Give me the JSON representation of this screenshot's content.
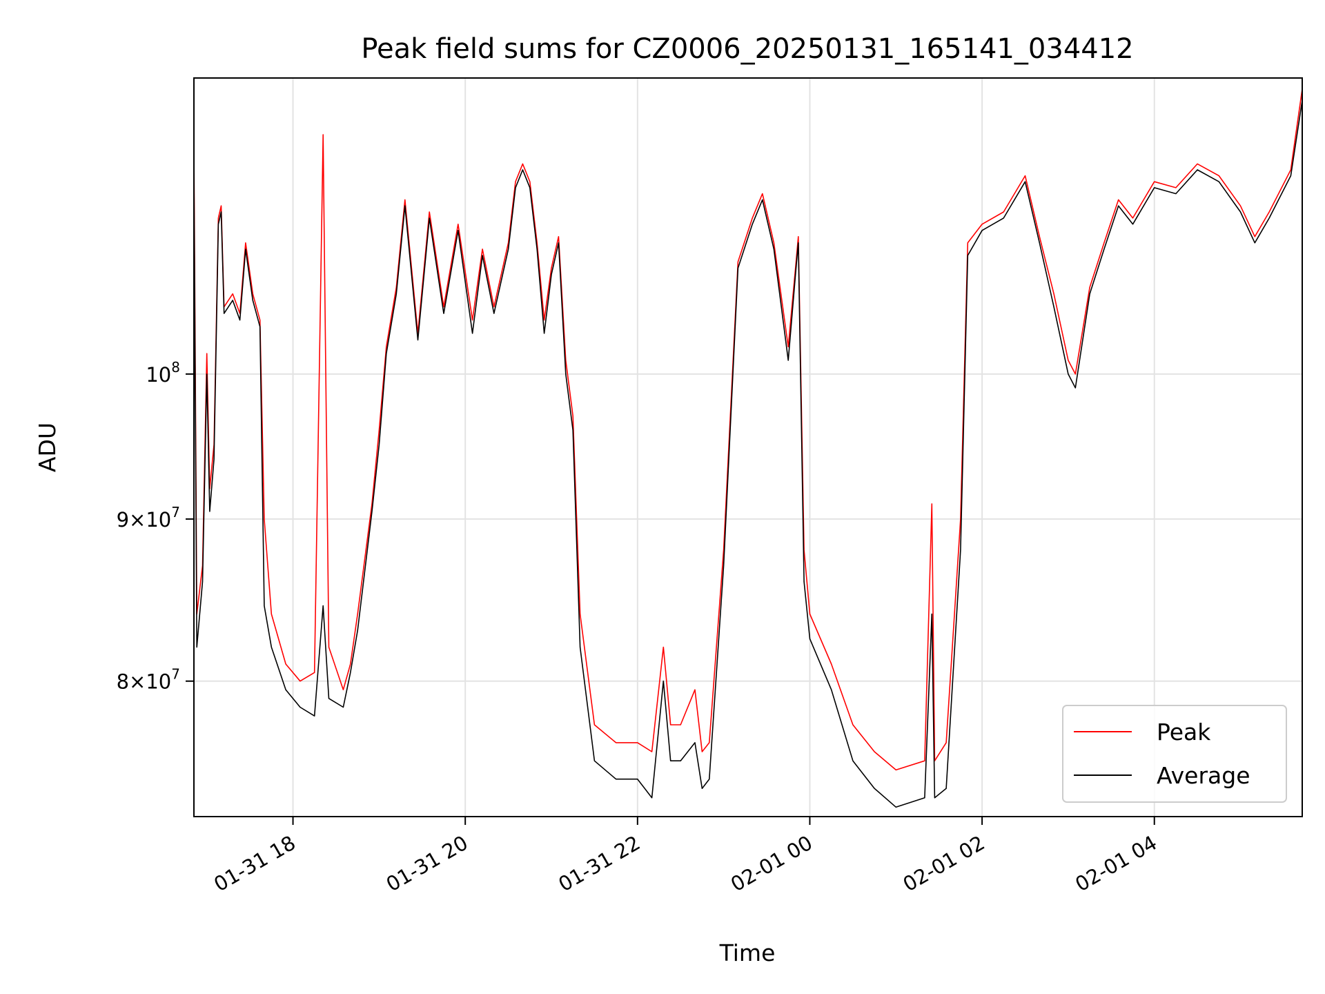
{
  "chart_data": {
    "type": "line",
    "title": "Peak field sums for CZ0006_20250131_165141_034412",
    "xlabel": "Time",
    "ylabel": "ADU",
    "x_range": [
      "2025-01-31 16:51",
      "2025-02-01 05:43"
    ],
    "y_scale": "log",
    "ylim": [
      72500000,
      124000000
    ],
    "grid": true,
    "legend_position": "lower-right",
    "x_ticks": [
      {
        "value": "2025-01-31 18:00",
        "label": "01-31 18"
      },
      {
        "value": "2025-01-31 20:00",
        "label": "01-31 20"
      },
      {
        "value": "2025-01-31 22:00",
        "label": "01-31 22"
      },
      {
        "value": "2025-02-01 00:00",
        "label": "02-01 00"
      },
      {
        "value": "2025-02-01 02:00",
        "label": "02-01 02"
      },
      {
        "value": "2025-02-01 04:00",
        "label": "02-01 04"
      }
    ],
    "y_ticks": [
      {
        "value": 80000000,
        "base": "8×10",
        "exp": "7"
      },
      {
        "value": 90000000,
        "base": "9×10",
        "exp": "7"
      },
      {
        "value": 100000000,
        "base": "10",
        "exp": "8"
      }
    ],
    "series": [
      {
        "name": "Peak",
        "color": "#ff0000",
        "points": [
          [
            "2025-01-31 16:51",
            118000000
          ],
          [
            "2025-01-31 16:53",
            84000000
          ],
          [
            "2025-01-31 16:57",
            87000000
          ],
          [
            "2025-01-31 17:00",
            101500000
          ],
          [
            "2025-01-31 17:02",
            92000000
          ],
          [
            "2025-01-31 17:05",
            95000000
          ],
          [
            "2025-01-31 17:08",
            112000000
          ],
          [
            "2025-01-31 17:10",
            113000000
          ],
          [
            "2025-01-31 17:12",
            105000000
          ],
          [
            "2025-01-31 17:18",
            106000000
          ],
          [
            "2025-01-31 17:23",
            104500000
          ],
          [
            "2025-01-31 17:27",
            110000000
          ],
          [
            "2025-01-31 17:32",
            106000000
          ],
          [
            "2025-01-31 17:37",
            104000000
          ],
          [
            "2025-01-31 17:40",
            90000000
          ],
          [
            "2025-01-31 17:45",
            84000000
          ],
          [
            "2025-01-31 17:55",
            81000000
          ],
          [
            "2025-01-31 18:05",
            80000000
          ],
          [
            "2025-01-31 18:15",
            80500000
          ],
          [
            "2025-01-31 18:21",
            119000000
          ],
          [
            "2025-01-31 18:25",
            82000000
          ],
          [
            "2025-01-31 18:35",
            79500000
          ],
          [
            "2025-01-31 18:40",
            81000000
          ],
          [
            "2025-01-31 18:45",
            84000000
          ],
          [
            "2025-01-31 18:55",
            91000000
          ],
          [
            "2025-01-31 19:00",
            96000000
          ],
          [
            "2025-01-31 19:05",
            102000000
          ],
          [
            "2025-01-31 19:12",
            106500000
          ],
          [
            "2025-01-31 19:18",
            113500000
          ],
          [
            "2025-01-31 19:27",
            103000000
          ],
          [
            "2025-01-31 19:35",
            112500000
          ],
          [
            "2025-01-31 19:45",
            105000000
          ],
          [
            "2025-01-31 19:55",
            111500000
          ],
          [
            "2025-01-31 20:05",
            104000000
          ],
          [
            "2025-01-31 20:12",
            109500000
          ],
          [
            "2025-01-31 20:20",
            105000000
          ],
          [
            "2025-01-31 20:30",
            110000000
          ],
          [
            "2025-01-31 20:35",
            115000000
          ],
          [
            "2025-01-31 20:40",
            116500000
          ],
          [
            "2025-01-31 20:45",
            115000000
          ],
          [
            "2025-01-31 20:50",
            110000000
          ],
          [
            "2025-01-31 20:55",
            104000000
          ],
          [
            "2025-01-31 21:00",
            108000000
          ],
          [
            "2025-01-31 21:05",
            110500000
          ],
          [
            "2025-01-31 21:10",
            101000000
          ],
          [
            "2025-01-31 21:15",
            97000000
          ],
          [
            "2025-01-31 21:20",
            84000000
          ],
          [
            "2025-01-31 21:30",
            77500000
          ],
          [
            "2025-01-31 21:45",
            76500000
          ],
          [
            "2025-01-31 22:00",
            76500000
          ],
          [
            "2025-01-31 22:10",
            76000000
          ],
          [
            "2025-01-31 22:18",
            82000000
          ],
          [
            "2025-01-31 22:23",
            77500000
          ],
          [
            "2025-01-31 22:30",
            77500000
          ],
          [
            "2025-01-31 22:40",
            79500000
          ],
          [
            "2025-01-31 22:45",
            76000000
          ],
          [
            "2025-01-31 22:50",
            76500000
          ],
          [
            "2025-01-31 23:00",
            88000000
          ],
          [
            "2025-01-31 23:10",
            108500000
          ],
          [
            "2025-01-31 23:20",
            112000000
          ],
          [
            "2025-01-31 23:27",
            114000000
          ],
          [
            "2025-01-31 23:35",
            110000000
          ],
          [
            "2025-01-31 23:45",
            102000000
          ],
          [
            "2025-01-31 23:50",
            108000000
          ],
          [
            "2025-01-31 23:52",
            110500000
          ],
          [
            "2025-01-31 23:56",
            88000000
          ],
          [
            "2025-02-01 00:00",
            84000000
          ],
          [
            "2025-02-01 00:15",
            81000000
          ],
          [
            "2025-02-01 00:30",
            77500000
          ],
          [
            "2025-02-01 00:45",
            76000000
          ],
          [
            "2025-02-01 01:00",
            75000000
          ],
          [
            "2025-02-01 01:20",
            75500000
          ],
          [
            "2025-02-01 01:25",
            91000000
          ],
          [
            "2025-02-01 01:27",
            75500000
          ],
          [
            "2025-02-01 01:35",
            76500000
          ],
          [
            "2025-02-01 01:45",
            90000000
          ],
          [
            "2025-02-01 01:50",
            110000000
          ],
          [
            "2025-02-01 02:00",
            111500000
          ],
          [
            "2025-02-01 02:15",
            112500000
          ],
          [
            "2025-02-01 02:30",
            115500000
          ],
          [
            "2025-02-01 02:40",
            110500000
          ],
          [
            "2025-02-01 02:50",
            106000000
          ],
          [
            "2025-02-01 03:00",
            101000000
          ],
          [
            "2025-02-01 03:05",
            100000000
          ],
          [
            "2025-02-01 03:15",
            106500000
          ],
          [
            "2025-02-01 03:25",
            110000000
          ],
          [
            "2025-02-01 03:35",
            113500000
          ],
          [
            "2025-02-01 03:45",
            112000000
          ],
          [
            "2025-02-01 04:00",
            115000000
          ],
          [
            "2025-02-01 04:15",
            114500000
          ],
          [
            "2025-02-01 04:30",
            116500000
          ],
          [
            "2025-02-01 04:45",
            115500000
          ],
          [
            "2025-02-01 05:00",
            113000000
          ],
          [
            "2025-02-01 05:10",
            110500000
          ],
          [
            "2025-02-01 05:20",
            112500000
          ],
          [
            "2025-02-01 05:35",
            116000000
          ],
          [
            "2025-02-01 05:43",
            123000000
          ]
        ]
      },
      {
        "name": "Average",
        "color": "#000000",
        "points": [
          [
            "2025-01-31 16:51",
            116000000
          ],
          [
            "2025-01-31 16:53",
            82000000
          ],
          [
            "2025-01-31 16:57",
            86000000
          ],
          [
            "2025-01-31 17:00",
            100000000
          ],
          [
            "2025-01-31 17:02",
            90500000
          ],
          [
            "2025-01-31 17:05",
            94000000
          ],
          [
            "2025-01-31 17:08",
            111500000
          ],
          [
            "2025-01-31 17:10",
            112500000
          ],
          [
            "2025-01-31 17:12",
            104500000
          ],
          [
            "2025-01-31 17:18",
            105500000
          ],
          [
            "2025-01-31 17:23",
            104000000
          ],
          [
            "2025-01-31 17:27",
            109500000
          ],
          [
            "2025-01-31 17:32",
            105500000
          ],
          [
            "2025-01-31 17:37",
            103500000
          ],
          [
            "2025-01-31 17:40",
            84500000
          ],
          [
            "2025-01-31 17:45",
            82000000
          ],
          [
            "2025-01-31 17:55",
            79500000
          ],
          [
            "2025-01-31 18:05",
            78500000
          ],
          [
            "2025-01-31 18:15",
            78000000
          ],
          [
            "2025-01-31 18:21",
            84500000
          ],
          [
            "2025-01-31 18:25",
            79000000
          ],
          [
            "2025-01-31 18:35",
            78500000
          ],
          [
            "2025-01-31 18:40",
            80500000
          ],
          [
            "2025-01-31 18:45",
            83000000
          ],
          [
            "2025-01-31 18:55",
            90500000
          ],
          [
            "2025-01-31 19:00",
            95000000
          ],
          [
            "2025-01-31 19:05",
            101500000
          ],
          [
            "2025-01-31 19:12",
            106000000
          ],
          [
            "2025-01-31 19:18",
            113000000
          ],
          [
            "2025-01-31 19:27",
            102500000
          ],
          [
            "2025-01-31 19:35",
            112000000
          ],
          [
            "2025-01-31 19:45",
            104500000
          ],
          [
            "2025-01-31 19:55",
            111000000
          ],
          [
            "2025-01-31 20:05",
            103000000
          ],
          [
            "2025-01-31 20:12",
            109000000
          ],
          [
            "2025-01-31 20:20",
            104500000
          ],
          [
            "2025-01-31 20:30",
            109500000
          ],
          [
            "2025-01-31 20:35",
            114500000
          ],
          [
            "2025-01-31 20:40",
            116000000
          ],
          [
            "2025-01-31 20:45",
            114500000
          ],
          [
            "2025-01-31 20:50",
            109500000
          ],
          [
            "2025-01-31 20:55",
            103000000
          ],
          [
            "2025-01-31 21:00",
            107500000
          ],
          [
            "2025-01-31 21:05",
            110000000
          ],
          [
            "2025-01-31 21:10",
            100000000
          ],
          [
            "2025-01-31 21:15",
            96000000
          ],
          [
            "2025-01-31 21:20",
            82000000
          ],
          [
            "2025-01-31 21:30",
            75500000
          ],
          [
            "2025-01-31 21:45",
            74500000
          ],
          [
            "2025-01-31 22:00",
            74500000
          ],
          [
            "2025-01-31 22:10",
            73500000
          ],
          [
            "2025-01-31 22:18",
            80000000
          ],
          [
            "2025-01-31 22:23",
            75500000
          ],
          [
            "2025-01-31 22:30",
            75500000
          ],
          [
            "2025-01-31 22:40",
            76500000
          ],
          [
            "2025-01-31 22:45",
            74000000
          ],
          [
            "2025-01-31 22:50",
            74500000
          ],
          [
            "2025-01-31 23:00",
            87000000
          ],
          [
            "2025-01-31 23:10",
            108000000
          ],
          [
            "2025-01-31 23:20",
            111500000
          ],
          [
            "2025-01-31 23:27",
            113500000
          ],
          [
            "2025-01-31 23:35",
            109500000
          ],
          [
            "2025-01-31 23:45",
            101000000
          ],
          [
            "2025-01-31 23:50",
            107500000
          ],
          [
            "2025-01-31 23:52",
            110000000
          ],
          [
            "2025-01-31 23:56",
            86000000
          ],
          [
            "2025-02-01 00:00",
            82500000
          ],
          [
            "2025-02-01 00:15",
            79500000
          ],
          [
            "2025-02-01 00:30",
            75500000
          ],
          [
            "2025-02-01 00:45",
            74000000
          ],
          [
            "2025-02-01 01:00",
            73000000
          ],
          [
            "2025-02-01 01:20",
            73500000
          ],
          [
            "2025-02-01 01:25",
            84000000
          ],
          [
            "2025-02-01 01:27",
            73500000
          ],
          [
            "2025-02-01 01:35",
            74000000
          ],
          [
            "2025-02-01 01:45",
            88000000
          ],
          [
            "2025-02-01 01:50",
            109000000
          ],
          [
            "2025-02-01 02:00",
            111000000
          ],
          [
            "2025-02-01 02:15",
            112000000
          ],
          [
            "2025-02-01 02:30",
            115000000
          ],
          [
            "2025-02-01 02:40",
            110000000
          ],
          [
            "2025-02-01 02:50",
            105000000
          ],
          [
            "2025-02-01 03:00",
            100000000
          ],
          [
            "2025-02-01 03:05",
            99000000
          ],
          [
            "2025-02-01 03:15",
            106000000
          ],
          [
            "2025-02-01 03:25",
            109500000
          ],
          [
            "2025-02-01 03:35",
            113000000
          ],
          [
            "2025-02-01 03:45",
            111500000
          ],
          [
            "2025-02-01 04:00",
            114500000
          ],
          [
            "2025-02-01 04:15",
            114000000
          ],
          [
            "2025-02-01 04:30",
            116000000
          ],
          [
            "2025-02-01 04:45",
            115000000
          ],
          [
            "2025-02-01 05:00",
            112500000
          ],
          [
            "2025-02-01 05:10",
            110000000
          ],
          [
            "2025-02-01 05:20",
            112000000
          ],
          [
            "2025-02-01 05:35",
            115500000
          ],
          [
            "2025-02-01 05:43",
            122000000
          ]
        ]
      }
    ]
  }
}
